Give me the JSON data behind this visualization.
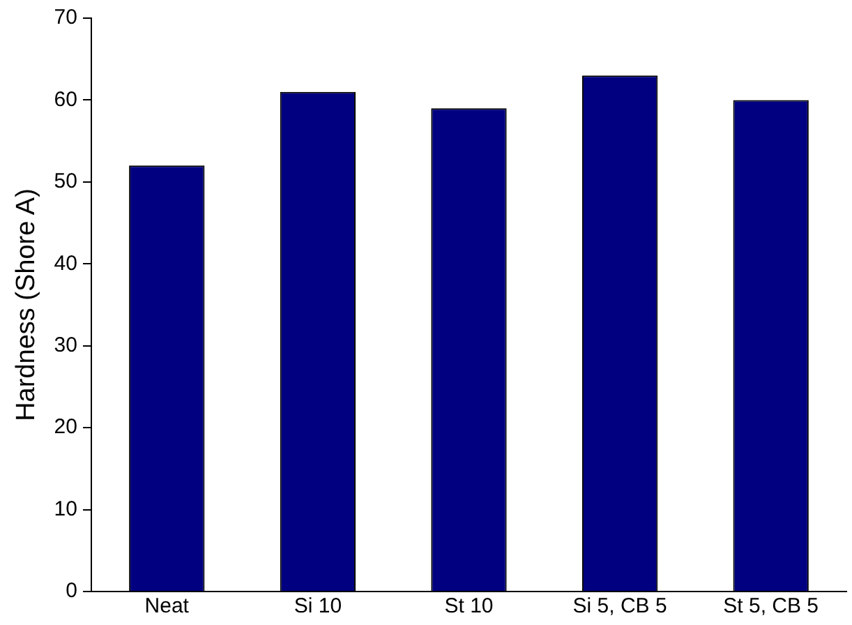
{
  "chart_data": {
    "type": "bar",
    "ylabel": "Hardness (Shore A)",
    "categories": [
      "Neat",
      "Si 10",
      "St 10",
      "Si 5, CB 5",
      "St 5, CB 5"
    ],
    "values": [
      52,
      61,
      59,
      63,
      60
    ],
    "color": "#000080",
    "ylim": [
      0,
      70
    ],
    "yticks": [
      0,
      10,
      20,
      30,
      40,
      50,
      60,
      70
    ],
    "grid": false,
    "legend": false
  }
}
